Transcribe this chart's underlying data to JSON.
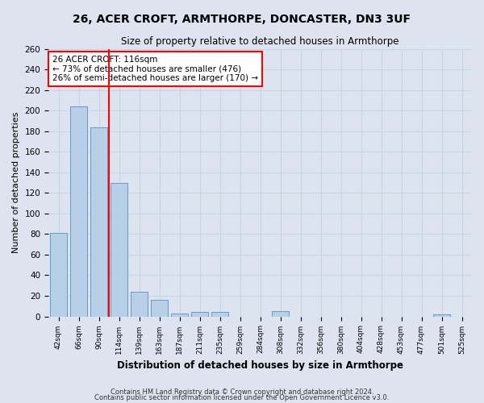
{
  "title1": "26, ACER CROFT, ARMTHORPE, DONCASTER, DN3 3UF",
  "title2": "Size of property relative to detached houses in Armthorpe",
  "xlabel": "Distribution of detached houses by size in Armthorpe",
  "ylabel": "Number of detached properties",
  "categories": [
    "42sqm",
    "66sqm",
    "90sqm",
    "114sqm",
    "139sqm",
    "163sqm",
    "187sqm",
    "211sqm",
    "235sqm",
    "259sqm",
    "284sqm",
    "308sqm",
    "332sqm",
    "356sqm",
    "380sqm",
    "404sqm",
    "428sqm",
    "453sqm",
    "477sqm",
    "501sqm",
    "525sqm"
  ],
  "values": [
    81,
    204,
    184,
    130,
    24,
    16,
    3,
    4,
    4,
    0,
    0,
    5,
    0,
    0,
    0,
    0,
    0,
    0,
    0,
    2,
    0
  ],
  "bar_color": "#b8cfe8",
  "bar_edge_color": "#6699cc",
  "red_line_x": 2.5,
  "annotation_text": "26 ACER CROFT: 116sqm\n← 73% of detached houses are smaller (476)\n26% of semi-detached houses are larger (170) →",
  "annotation_box_color": "white",
  "annotation_box_edge": "red",
  "ylim": [
    0,
    260
  ],
  "yticks": [
    0,
    20,
    40,
    60,
    80,
    100,
    120,
    140,
    160,
    180,
    200,
    220,
    240,
    260
  ],
  "grid_color": "#c8d4e8",
  "background_color": "#dde4f0",
  "footer1": "Contains HM Land Registry data © Crown copyright and database right 2024.",
  "footer2": "Contains public sector information licensed under the Open Government Licence v3.0."
}
